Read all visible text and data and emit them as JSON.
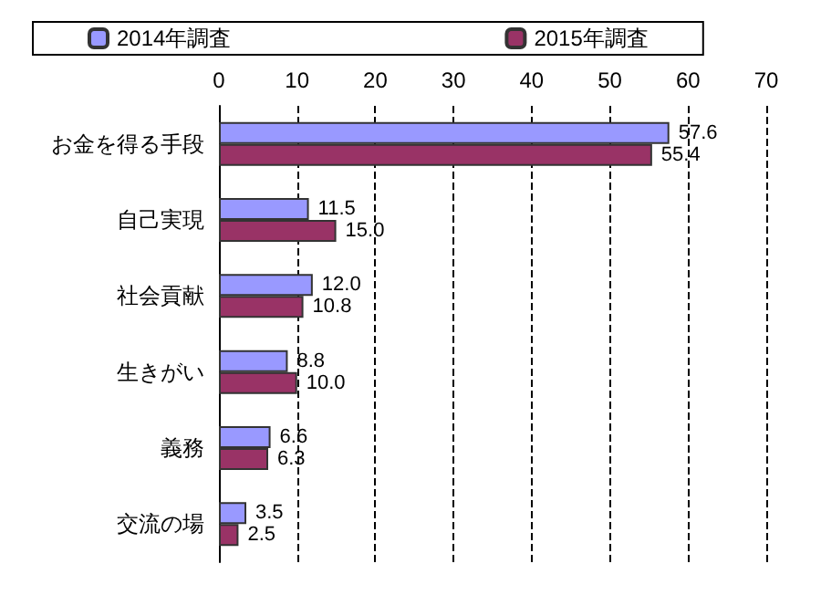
{
  "chart_data": {
    "type": "bar",
    "orientation": "horizontal",
    "categories": [
      "お金を得る手段",
      "自己実現",
      "社会貢献",
      "生きがい",
      "義務",
      "交流の場"
    ],
    "series": [
      {
        "name": "2014年調査",
        "color": "#9999ff",
        "values": [
          57.6,
          11.5,
          12.0,
          8.8,
          6.6,
          3.5
        ],
        "value_labels": [
          "57.6",
          "11.5",
          "12.0",
          "8.8",
          "6.6",
          "3.5"
        ]
      },
      {
        "name": "2015年調査",
        "color": "#993366",
        "values": [
          55.4,
          15.0,
          10.8,
          10.0,
          6.3,
          2.5
        ],
        "value_labels": [
          "55.4",
          "15.0",
          "10.8",
          "10.0",
          "6.3",
          "2.5"
        ]
      }
    ],
    "xlim": [
      0,
      70
    ],
    "xticks": [
      0,
      10,
      20,
      30,
      40,
      50,
      60,
      70
    ],
    "grid": "x",
    "legend": "top"
  }
}
